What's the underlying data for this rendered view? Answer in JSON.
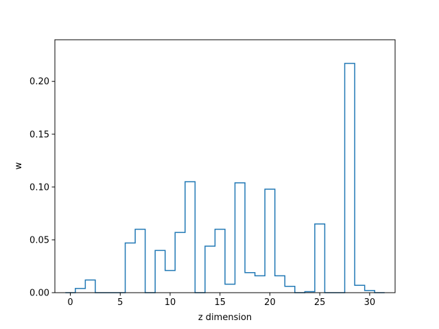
{
  "chart_data": {
    "type": "step",
    "xlabel": "z dimension",
    "ylabel": "w",
    "xlim": [
      -1.55,
      32.55
    ],
    "ylim": [
      0.0,
      0.2394
    ],
    "xticks": [
      0,
      5,
      10,
      15,
      20,
      25,
      30
    ],
    "xtick_labels": [
      "0",
      "5",
      "10",
      "15",
      "20",
      "25",
      "30"
    ],
    "yticks": [
      0.0,
      0.05,
      0.1,
      0.15,
      0.2
    ],
    "ytick_labels": [
      "0.00",
      "0.05",
      "0.10",
      "0.15",
      "0.20"
    ],
    "grid": false,
    "legend": "none",
    "series": [
      {
        "color": "#1f77b4",
        "x": [
          0,
          1,
          2,
          3,
          4,
          5,
          6,
          7,
          8,
          9,
          10,
          11,
          12,
          13,
          14,
          15,
          16,
          17,
          18,
          19,
          20,
          21,
          22,
          23,
          24,
          25,
          26,
          27,
          28,
          29,
          30,
          31
        ],
        "values": [
          0.0,
          0.004,
          0.012,
          0.0,
          0.0,
          0.0,
          0.047,
          0.06,
          0.0,
          0.04,
          0.021,
          0.057,
          0.105,
          0.0,
          0.044,
          0.06,
          0.008,
          0.104,
          0.019,
          0.016,
          0.098,
          0.016,
          0.006,
          0.0,
          0.001,
          0.065,
          0.0,
          0.0,
          0.217,
          0.007,
          0.002,
          0.0
        ]
      }
    ]
  }
}
